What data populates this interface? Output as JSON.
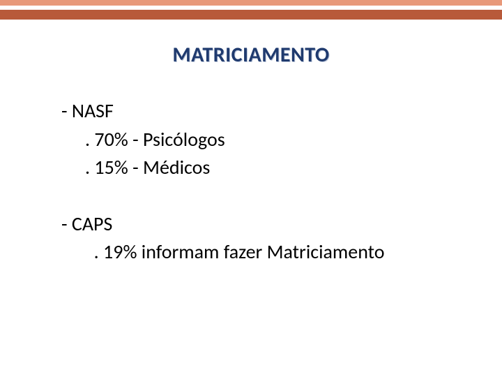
{
  "bands": {
    "top_color": "#e8997a",
    "bottom_color": "#b85a3a"
  },
  "title": {
    "text": "MATRICIAMENTO",
    "color": "#1f3a6e",
    "shadow_color": "#b9c4d8"
  },
  "content": {
    "text_color": "#000000",
    "groups": [
      {
        "head": "- NASF",
        "items": [
          ". 70% - Psicólogos",
          ". 15% - Médicos"
        ]
      },
      {
        "head": "- CAPS",
        "items": [
          "  . 19% informam fazer Matriciamento"
        ]
      }
    ]
  }
}
